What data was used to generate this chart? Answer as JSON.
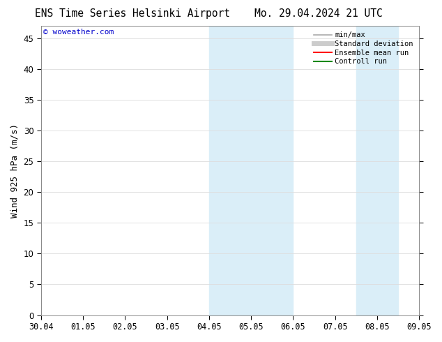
{
  "title_left": "ENS Time Series Helsinki Airport",
  "title_right": "Mo. 29.04.2024 21 UTC",
  "ylabel": "Wind 925 hPa (m/s)",
  "watermark": "© woweather.com",
  "watermark_color": "#0000cc",
  "ylim": [
    0,
    47
  ],
  "yticks": [
    0,
    5,
    10,
    15,
    20,
    25,
    30,
    35,
    40,
    45
  ],
  "xtick_labels": [
    "30.04",
    "01.05",
    "02.05",
    "03.05",
    "04.05",
    "05.05",
    "06.05",
    "07.05",
    "08.05",
    "09.05"
  ],
  "xtick_positions": [
    0,
    1,
    2,
    3,
    4,
    5,
    6,
    7,
    8,
    9
  ],
  "shaded_bands": [
    {
      "x_start": 4.0,
      "x_end": 6.0,
      "color": "#daeef8"
    },
    {
      "x_start": 7.5,
      "x_end": 8.5,
      "color": "#daeef8"
    }
  ],
  "legend_items": [
    {
      "label": "min/max",
      "color": "#aaaaaa",
      "lw": 1.2
    },
    {
      "label": "Standard deviation",
      "color": "#cccccc",
      "lw": 5
    },
    {
      "label": "Ensemble mean run",
      "color": "#ff0000",
      "lw": 1.5
    },
    {
      "label": "Controll run",
      "color": "#008800",
      "lw": 1.5
    }
  ],
  "bg_color": "#ffffff",
  "grid_color": "#dddddd",
  "tick_color": "#000000",
  "font_family": "monospace",
  "font_size": 8.5,
  "title_font_size": 10.5
}
